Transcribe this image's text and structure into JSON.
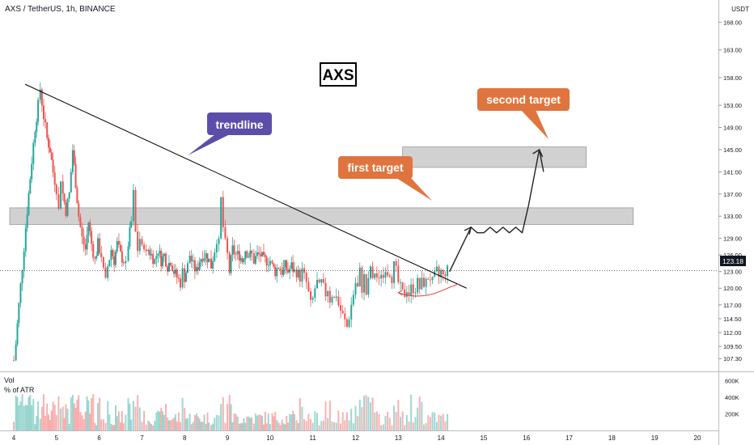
{
  "header": {
    "symbol": "AXS / TetherUS, 1h, BINANCE"
  },
  "chart_data": {
    "type": "candlestick",
    "symbol": "AXS / TetherUS",
    "interval": "1h",
    "exchange": "BINANCE",
    "currency_label": "USDT",
    "last_price": 123.18,
    "ylim": [
      105.0,
      172.0
    ],
    "y_ticks": [
      "168.00",
      "163.00",
      "158.00",
      "153.00",
      "149.00",
      "145.00",
      "141.00",
      "137.00",
      "133.00",
      "129.00",
      "126.00",
      "123.00",
      "120.00",
      "117.00",
      "114.50",
      "112.00",
      "109.50",
      "107.30"
    ],
    "y_tick_values": [
      168,
      163,
      158,
      153,
      149,
      145,
      141,
      137,
      133,
      129,
      126,
      123,
      120,
      117,
      114.5,
      112,
      109.5,
      107.3
    ],
    "x_ticks": [
      "4",
      "5",
      "6",
      "7",
      "8",
      "9",
      "10",
      "11",
      "12",
      "13",
      "14",
      "15",
      "16",
      "17",
      "18",
      "19",
      "20"
    ],
    "price_series": [
      [
        4.0,
        107
      ],
      [
        4.05,
        110
      ],
      [
        4.12,
        117
      ],
      [
        4.2,
        124
      ],
      [
        4.28,
        131
      ],
      [
        4.35,
        137
      ],
      [
        4.42,
        143
      ],
      [
        4.5,
        149
      ],
      [
        4.57,
        153
      ],
      [
        4.62,
        156
      ],
      [
        4.7,
        151
      ],
      [
        4.78,
        147
      ],
      [
        4.85,
        145
      ],
      [
        4.92,
        141
      ],
      [
        5.0,
        138
      ],
      [
        5.05,
        134
      ],
      [
        5.1,
        140
      ],
      [
        5.15,
        137
      ],
      [
        5.22,
        134
      ],
      [
        5.3,
        137
      ],
      [
        5.38,
        145
      ],
      [
        5.45,
        139
      ],
      [
        5.52,
        133
      ],
      [
        5.6,
        129
      ],
      [
        5.68,
        127
      ],
      [
        5.75,
        132
      ],
      [
        5.82,
        128
      ],
      [
        5.9,
        125
      ],
      [
        5.97,
        128
      ],
      [
        6.05,
        126
      ],
      [
        6.1,
        123
      ],
      [
        6.15,
        121
      ],
      [
        6.2,
        124
      ],
      [
        6.28,
        127
      ],
      [
        6.35,
        125
      ],
      [
        6.42,
        128
      ],
      [
        6.5,
        126
      ],
      [
        6.57,
        125
      ],
      [
        6.62,
        124
      ],
      [
        6.68,
        128
      ],
      [
        6.75,
        132
      ],
      [
        6.8,
        137
      ],
      [
        6.85,
        130
      ],
      [
        6.9,
        127
      ],
      [
        6.95,
        129
      ],
      [
        7.0,
        127
      ],
      [
        7.05,
        128
      ],
      [
        7.1,
        126
      ],
      [
        7.15,
        127
      ],
      [
        7.22,
        126
      ],
      [
        7.3,
        125
      ],
      [
        7.38,
        127
      ],
      [
        7.45,
        125
      ],
      [
        7.52,
        126
      ],
      [
        7.6,
        124
      ],
      [
        7.67,
        125
      ],
      [
        7.75,
        123
      ],
      [
        7.82,
        122
      ],
      [
        7.9,
        121
      ],
      [
        7.95,
        123
      ],
      [
        8.0,
        122
      ],
      [
        8.07,
        124
      ],
      [
        8.12,
        126
      ],
      [
        8.2,
        124
      ],
      [
        8.28,
        123
      ],
      [
        8.35,
        125
      ],
      [
        8.42,
        126
      ],
      [
        8.5,
        126
      ],
      [
        8.57,
        125
      ],
      [
        8.62,
        124
      ],
      [
        8.7,
        127
      ],
      [
        8.75,
        129
      ],
      [
        8.8,
        128
      ],
      [
        8.85,
        136
      ],
      [
        8.9,
        131
      ],
      [
        8.95,
        128
      ],
      [
        9.0,
        126
      ],
      [
        9.05,
        123
      ],
      [
        9.12,
        127
      ],
      [
        9.2,
        126
      ],
      [
        9.28,
        126
      ],
      [
        9.35,
        125
      ],
      [
        9.42,
        127
      ],
      [
        9.5,
        126
      ],
      [
        9.57,
        126
      ],
      [
        9.62,
        125
      ],
      [
        9.7,
        126
      ],
      [
        9.78,
        126
      ],
      [
        9.85,
        125
      ],
      [
        9.92,
        125
      ],
      [
        10.0,
        125
      ],
      [
        10.05,
        124
      ],
      [
        10.12,
        123
      ],
      [
        10.2,
        124
      ],
      [
        10.28,
        123
      ],
      [
        10.35,
        124
      ],
      [
        10.42,
        123
      ],
      [
        10.5,
        124
      ],
      [
        10.57,
        123
      ],
      [
        10.62,
        123
      ],
      [
        10.7,
        122
      ],
      [
        10.75,
        123
      ],
      [
        10.8,
        122
      ],
      [
        10.85,
        121
      ],
      [
        10.9,
        119
      ],
      [
        10.95,
        117
      ],
      [
        11.0,
        118
      ],
      [
        11.05,
        120
      ],
      [
        11.1,
        121
      ],
      [
        11.15,
        120
      ],
      [
        11.2,
        121
      ],
      [
        11.25,
        120
      ],
      [
        11.3,
        119
      ],
      [
        11.35,
        120
      ],
      [
        11.4,
        118
      ],
      [
        11.45,
        119
      ],
      [
        11.5,
        118
      ],
      [
        11.55,
        119
      ],
      [
        11.6,
        117
      ],
      [
        11.65,
        116
      ],
      [
        11.7,
        115
      ],
      [
        11.75,
        114
      ],
      [
        11.8,
        113
      ],
      [
        11.85,
        115
      ],
      [
        11.9,
        117
      ],
      [
        11.95,
        119
      ],
      [
        12.0,
        121
      ],
      [
        12.05,
        120
      ],
      [
        12.1,
        123
      ],
      [
        12.15,
        120
      ],
      [
        12.2,
        122
      ],
      [
        12.25,
        119
      ],
      [
        12.3,
        121
      ],
      [
        12.35,
        124
      ],
      [
        12.4,
        121
      ],
      [
        12.45,
        123
      ],
      [
        12.5,
        122
      ],
      [
        12.55,
        121
      ],
      [
        12.6,
        123
      ],
      [
        12.65,
        122
      ],
      [
        12.7,
        124
      ],
      [
        12.75,
        123
      ],
      [
        12.8,
        123
      ],
      [
        12.85,
        122
      ],
      [
        12.9,
        124
      ],
      [
        12.95,
        123
      ],
      [
        13.0,
        121
      ],
      [
        13.05,
        120
      ],
      [
        13.1,
        119
      ],
      [
        13.15,
        119
      ],
      [
        13.2,
        120
      ],
      [
        13.25,
        119
      ],
      [
        13.3,
        120
      ],
      [
        13.35,
        120
      ],
      [
        13.4,
        120
      ],
      [
        13.45,
        121
      ],
      [
        13.5,
        120
      ],
      [
        13.55,
        121
      ],
      [
        13.6,
        121
      ],
      [
        13.65,
        121
      ],
      [
        13.7,
        122
      ],
      [
        13.75,
        122
      ],
      [
        13.8,
        121
      ],
      [
        13.85,
        122
      ],
      [
        13.9,
        123
      ],
      [
        13.95,
        122
      ],
      [
        14.0,
        123
      ],
      [
        14.05,
        122
      ],
      [
        14.1,
        123
      ],
      [
        14.15,
        123.18
      ]
    ],
    "zones": [
      {
        "from": 131.5,
        "to": 134.5
      },
      {
        "from": 141.8,
        "to": 145.5
      }
    ],
    "trendline": [
      [
        4.0,
        156.8
      ],
      [
        14.6,
        120.0
      ]
    ],
    "projection": [
      [
        14.2,
        123
      ],
      [
        14.45,
        127
      ],
      [
        14.7,
        131
      ],
      [
        14.85,
        130
      ],
      [
        15.0,
        130
      ],
      [
        15.15,
        131
      ],
      [
        15.3,
        130
      ],
      [
        15.45,
        131
      ],
      [
        15.6,
        130
      ],
      [
        15.75,
        131
      ],
      [
        15.9,
        130
      ],
      [
        16.05,
        135
      ],
      [
        16.2,
        141
      ],
      [
        16.3,
        145
      ],
      [
        16.4,
        141
      ]
    ],
    "arc": [
      [
        13.0,
        119.2
      ],
      [
        13.5,
        119.0
      ],
      [
        14.0,
        119.5
      ],
      [
        14.4,
        120.6
      ]
    ],
    "annotations": {
      "title_box": "AXS",
      "trendline_label": "trendline",
      "first_target_label": "first target",
      "second_target_label": "second target"
    },
    "volume": {
      "label": "Vol",
      "sublabel": "% of ATR",
      "y_ticks": [
        "600K",
        "400K",
        "200K"
      ],
      "y_tick_values": [
        600,
        400,
        200
      ],
      "ylim": [
        0,
        700
      ]
    },
    "colors": {
      "up": "#26a69a",
      "down": "#ef5350",
      "zone": "#b2b2b2",
      "trendline": "#000000",
      "trendline_label_bg": "#5c4ea8",
      "target_label_bg": "#e0743e",
      "price_tag_bg": "#131722"
    }
  }
}
